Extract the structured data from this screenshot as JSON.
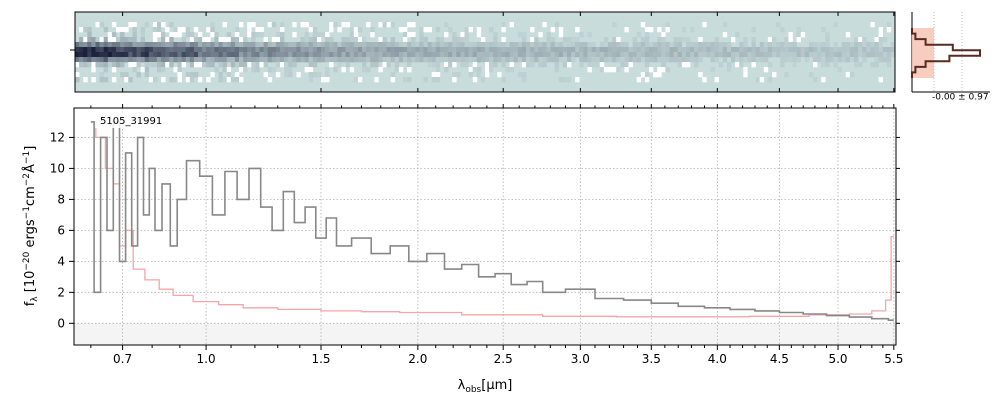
{
  "chart_data": [
    {
      "type": "heatmap",
      "panel": "2d-spectrum",
      "description": "2D spectrum cutout; bright trace near center rows, strongest at short wavelengths",
      "trace_intensity_by_x": [
        1.0,
        0.85,
        0.7,
        0.55,
        0.45,
        0.38,
        0.33,
        0.3,
        0.28,
        0.26,
        0.24,
        0.22,
        0.2,
        0.19,
        0.18,
        0.17,
        0.16,
        0.15,
        0.14,
        0.13
      ],
      "colors": {
        "background": "#c8dcdc",
        "trace": "#1a1f3a",
        "noise": "#ffffff"
      }
    },
    {
      "type": "line",
      "panel": "profile",
      "annotation": "-0.00 ± 0.97",
      "profile_y": [
        0.0,
        0.05,
        0.2,
        0.6,
        1.0,
        0.55,
        0.2,
        0.05,
        0.0
      ],
      "colors": {
        "line": "#5a2a20",
        "fill": "#f6c8b8"
      }
    },
    {
      "type": "line",
      "panel": "1d-spectrum",
      "label": "5105_31991",
      "xlabel": "λobs [μm]",
      "xlabel_parts": {
        "lambda": "λ",
        "sub": "obs",
        "unit_pre": "[",
        "mu": "μ",
        "unit_post": "m]"
      },
      "ylabel": "fλ [10−20 ergs−1cm−2Å−1]",
      "ylabel_parts": {
        "f": "f",
        "sub": "λ",
        "pre": "[10",
        "e1": "−20",
        "mid1": " ergs",
        "e2": "−1",
        "mid2": "cm",
        "e3": "−2",
        "mid3": "Å",
        "e4": "−1",
        "post": "]"
      },
      "xticks": [
        0.7,
        1.0,
        1.5,
        2.0,
        2.5,
        3.0,
        3.5,
        4.0,
        4.5,
        5.0,
        5.5
      ],
      "xtick_labels": [
        "0.7",
        "1.0",
        "1.5",
        "2.0",
        "2.5",
        "3.0",
        "3.5",
        "4.0",
        "4.5",
        "5.0",
        "5.5"
      ],
      "yticks": [
        0,
        2,
        4,
        6,
        8,
        10,
        12
      ],
      "ytick_labels": [
        "0",
        "2",
        "4",
        "6",
        "8",
        "10",
        "12"
      ],
      "ylim": [
        -1.4,
        13.9
      ],
      "xlim": [
        0.55,
        5.52
      ],
      "x_scale": "nonlinear (approx. λ^0.5)",
      "grid": true,
      "series": [
        {
          "role": "flux",
          "color": "#888888",
          "points": [
            [
              0.6,
              13
            ],
            [
              0.62,
              2
            ],
            [
              0.64,
              12
            ],
            [
              0.66,
              6
            ],
            [
              0.68,
              13
            ],
            [
              0.7,
              4
            ],
            [
              0.72,
              11
            ],
            [
              0.74,
              5
            ],
            [
              0.76,
              12
            ],
            [
              0.78,
              7
            ],
            [
              0.8,
              10
            ],
            [
              0.82,
              6
            ],
            [
              0.85,
              9
            ],
            [
              0.88,
              5
            ],
            [
              0.9,
              8
            ],
            [
              0.95,
              10.5
            ],
            [
              1.0,
              9.5
            ],
            [
              1.05,
              7
            ],
            [
              1.1,
              9.8
            ],
            [
              1.15,
              8
            ],
            [
              1.2,
              10
            ],
            [
              1.25,
              7.5
            ],
            [
              1.3,
              6
            ],
            [
              1.35,
              8.5
            ],
            [
              1.4,
              6.5
            ],
            [
              1.45,
              7.5
            ],
            [
              1.5,
              5.5
            ],
            [
              1.55,
              6.8
            ],
            [
              1.6,
              5
            ],
            [
              1.7,
              5.5
            ],
            [
              1.8,
              4.5
            ],
            [
              1.9,
              5
            ],
            [
              2.0,
              4
            ],
            [
              2.1,
              4.5
            ],
            [
              2.2,
              3.5
            ],
            [
              2.3,
              3.8
            ],
            [
              2.4,
              3
            ],
            [
              2.5,
              3.2
            ],
            [
              2.6,
              2.5
            ],
            [
              2.7,
              2.7
            ],
            [
              2.8,
              2
            ],
            [
              3.0,
              2.2
            ],
            [
              3.2,
              1.6
            ],
            [
              3.4,
              1.5
            ],
            [
              3.6,
              1.3
            ],
            [
              3.8,
              1.1
            ],
            [
              4.0,
              1.0
            ],
            [
              4.2,
              0.9
            ],
            [
              4.4,
              0.8
            ],
            [
              4.6,
              0.7
            ],
            [
              4.8,
              0.6
            ],
            [
              5.0,
              0.5
            ],
            [
              5.2,
              0.4
            ],
            [
              5.4,
              0.3
            ],
            [
              5.5,
              0.2
            ]
          ]
        },
        {
          "role": "error",
          "color": "#f4a6a6",
          "points": [
            [
              0.6,
              13
            ],
            [
              0.63,
              12
            ],
            [
              0.66,
              10
            ],
            [
              0.68,
              9
            ],
            [
              0.7,
              5
            ],
            [
              0.72,
              6
            ],
            [
              0.75,
              3.5
            ],
            [
              0.8,
              2.8
            ],
            [
              0.85,
              2.2
            ],
            [
              0.9,
              1.8
            ],
            [
              1.0,
              1.4
            ],
            [
              1.1,
              1.2
            ],
            [
              1.2,
              1.0
            ],
            [
              1.4,
              0.9
            ],
            [
              1.6,
              0.8
            ],
            [
              1.8,
              0.75
            ],
            [
              2.0,
              0.7
            ],
            [
              2.5,
              0.55
            ],
            [
              3.0,
              0.45
            ],
            [
              3.5,
              0.42
            ],
            [
              4.0,
              0.42
            ],
            [
              4.5,
              0.45
            ],
            [
              5.0,
              0.55
            ],
            [
              5.2,
              0.6
            ],
            [
              5.4,
              0.8
            ],
            [
              5.45,
              1.5
            ],
            [
              5.5,
              5.6
            ]
          ]
        }
      ]
    }
  ]
}
